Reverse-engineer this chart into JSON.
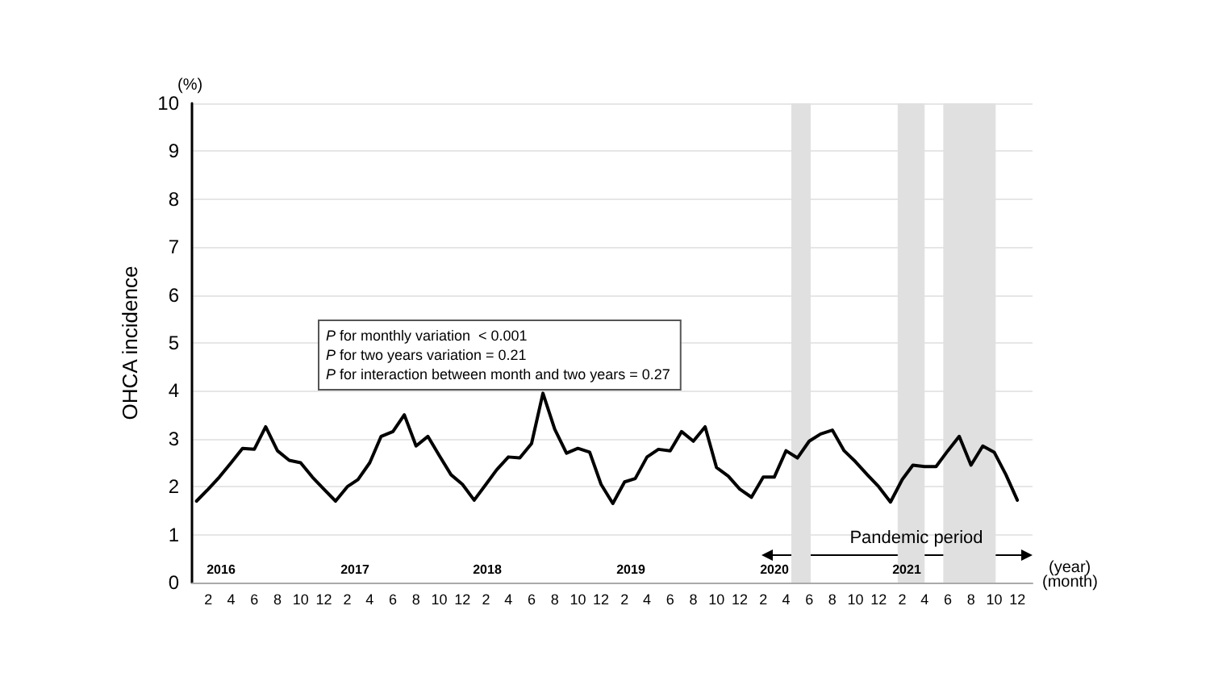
{
  "chart_data": {
    "type": "line",
    "ylabel": "OHCA incidence",
    "xlabel": "(month)",
    "x": [
      "2016-01",
      "2016-02",
      "2016-03",
      "2016-04",
      "2016-05",
      "2016-06",
      "2016-07",
      "2016-08",
      "2016-09",
      "2016-10",
      "2016-11",
      "2016-12",
      "2017-01",
      "2017-02",
      "2017-03",
      "2017-04",
      "2017-05",
      "2017-06",
      "2017-07",
      "2017-08",
      "2017-09",
      "2017-10",
      "2017-11",
      "2017-12",
      "2018-01",
      "2018-02",
      "2018-03",
      "2018-04",
      "2018-05",
      "2018-06",
      "2018-07",
      "2018-08",
      "2018-09",
      "2018-10",
      "2018-11",
      "2018-12",
      "2019-01",
      "2019-02",
      "2019-03",
      "2019-04",
      "2019-05",
      "2019-06",
      "2019-07",
      "2019-08",
      "2019-09",
      "2019-10",
      "2019-11",
      "2019-12",
      "2020-01",
      "2020-02",
      "2020-03",
      "2020-04",
      "2020-05",
      "2020-06",
      "2020-07",
      "2020-08",
      "2020-09",
      "2020-10",
      "2020-11",
      "2020-12",
      "2021-01",
      "2021-02",
      "2021-03",
      "2021-04",
      "2021-05",
      "2021-06",
      "2021-07",
      "2021-08",
      "2021-09",
      "2021-10",
      "2021-11",
      "2021-12"
    ],
    "series": [
      {
        "color": "#000000",
        "values": [
          1.7,
          1.95,
          2.2,
          2.5,
          2.8,
          2.78,
          3.25,
          2.75,
          2.55,
          2.5,
          2.2,
          1.95,
          1.7,
          2.0,
          2.15,
          2.5,
          3.05,
          3.15,
          3.5,
          2.85,
          3.05,
          2.65,
          2.25,
          2.05,
          1.72,
          2.05,
          2.35,
          2.62,
          2.6,
          2.9,
          3.95,
          3.2,
          2.7,
          2.8,
          2.72,
          2.05,
          1.65,
          2.1,
          2.17,
          2.62,
          2.78,
          2.75,
          3.15,
          2.95,
          3.25,
          2.4,
          2.22,
          1.95,
          1.78,
          2.2,
          2.2,
          2.75,
          2.6,
          2.95,
          3.1,
          3.18,
          2.75,
          2.52,
          2.25,
          2.0,
          1.68,
          2.15,
          2.45,
          2.42,
          2.42,
          2.75,
          3.05,
          2.45,
          2.85,
          2.72,
          2.25,
          1.72
        ]
      }
    ],
    "xlim": [
      "2015-12-20",
      "2022-01-10"
    ],
    "xticks": [
      {
        "value": "2016-02",
        "label": "2"
      },
      {
        "value": "2016-04",
        "label": "4"
      },
      {
        "value": "2016-06",
        "label": "6"
      },
      {
        "value": "2016-08",
        "label": "8"
      },
      {
        "value": "2016-10",
        "label": "10"
      },
      {
        "value": "2016-12",
        "label": "12"
      },
      {
        "value": "2017-02",
        "label": "2"
      },
      {
        "value": "2017-04",
        "label": "4"
      },
      {
        "value": "2017-06",
        "label": "6"
      },
      {
        "value": "2017-08",
        "label": "8"
      },
      {
        "value": "2017-10",
        "label": "10"
      },
      {
        "value": "2017-12",
        "label": "12"
      },
      {
        "value": "2018-02",
        "label": "2"
      },
      {
        "value": "2018-04",
        "label": "4"
      },
      {
        "value": "2018-06",
        "label": "6"
      },
      {
        "value": "2018-08",
        "label": "8"
      },
      {
        "value": "2018-10",
        "label": "10"
      },
      {
        "value": "2018-12",
        "label": "12"
      },
      {
        "value": "2019-02",
        "label": "2"
      },
      {
        "value": "2019-04",
        "label": "4"
      },
      {
        "value": "2019-06",
        "label": "6"
      },
      {
        "value": "2019-08",
        "label": "8"
      },
      {
        "value": "2019-10",
        "label": "10"
      },
      {
        "value": "2019-12",
        "label": "12"
      },
      {
        "value": "2020-02",
        "label": "2"
      },
      {
        "value": "2020-04",
        "label": "4"
      },
      {
        "value": "2020-06",
        "label": "6"
      },
      {
        "value": "2020-08",
        "label": "8"
      },
      {
        "value": "2020-10",
        "label": "10"
      },
      {
        "value": "2020-12",
        "label": "12"
      },
      {
        "value": "2021-02",
        "label": "2"
      },
      {
        "value": "2021-04",
        "label": "4"
      },
      {
        "value": "2021-06",
        "label": "6"
      },
      {
        "value": "2021-08",
        "label": "8"
      },
      {
        "value": "2021-10",
        "label": "10"
      },
      {
        "value": "2021-12",
        "label": "12"
      }
    ],
    "ylim": [
      0,
      10
    ],
    "yticks": [
      0,
      1,
      2,
      3,
      4,
      5,
      6,
      7,
      8,
      9,
      10
    ],
    "grid": "y",
    "marker": "none",
    "line_style": "solid",
    "bands": [
      {
        "axis": "x",
        "from": "2020-04-15",
        "to": "2020-06-05",
        "color": "#e0e0e0"
      },
      {
        "axis": "x",
        "from": "2021-01-20",
        "to": "2021-04-01",
        "color": "#e0e0e0"
      },
      {
        "axis": "x",
        "from": "2021-05-20",
        "to": "2021-10-05",
        "color": "#e0e0e0"
      }
    ],
    "annotations": [
      "P for monthly variation  < 0.001",
      "P for two years variation = 0.21",
      "P for interaction between month and two years = 0.27",
      "(%)",
      "(year)",
      "Pandemic period",
      "2016",
      "2017",
      "2018",
      "2019",
      "2020",
      "2021"
    ]
  }
}
